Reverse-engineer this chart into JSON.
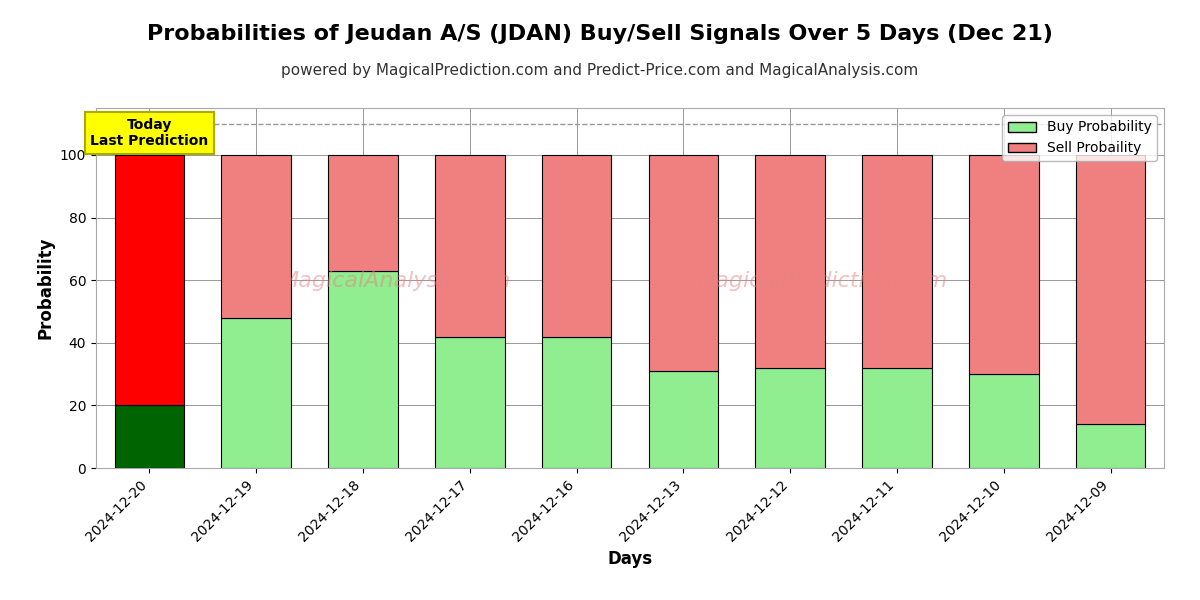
{
  "title": "Probabilities of Jeudan A/S (JDAN) Buy/Sell Signals Over 5 Days (Dec 21)",
  "subtitle": "powered by MagicalPrediction.com and Predict-Price.com and MagicalAnalysis.com",
  "xlabel": "Days",
  "ylabel": "Probability",
  "categories": [
    "2024-12-20",
    "2024-12-19",
    "2024-12-18",
    "2024-12-17",
    "2024-12-16",
    "2024-12-13",
    "2024-12-12",
    "2024-12-11",
    "2024-12-10",
    "2024-12-09"
  ],
  "buy_values": [
    20,
    48,
    63,
    42,
    42,
    31,
    32,
    32,
    30,
    14
  ],
  "sell_values": [
    80,
    52,
    37,
    58,
    58,
    69,
    68,
    68,
    70,
    86
  ],
  "buy_color_today": "#006400",
  "sell_color_today": "#ff0000",
  "buy_color_normal": "#90ee90",
  "sell_color_normal": "#f08080",
  "bar_edge_color": "#000000",
  "bar_edge_width": 0.8,
  "today_label_text": "Today\nLast Prediction",
  "today_label_bg": "#ffff00",
  "legend_buy": "Buy Probability",
  "legend_sell": "Sell Probaility",
  "ylim": [
    0,
    115
  ],
  "yticks": [
    0,
    20,
    40,
    60,
    80,
    100
  ],
  "dashed_line_y": 110,
  "grid_color": "#999999",
  "bg_color": "#ffffff",
  "title_fontsize": 16,
  "subtitle_fontsize": 11,
  "axis_label_fontsize": 12,
  "tick_fontsize": 10
}
